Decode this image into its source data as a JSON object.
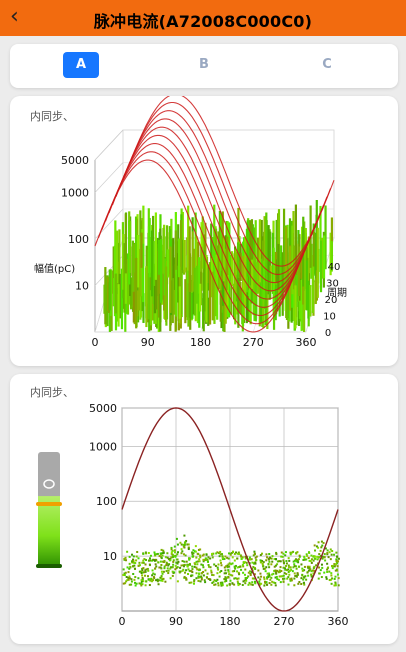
{
  "header": {
    "back_icon": "chevron-left-icon",
    "title": "脉冲电流(A72008C000C0)"
  },
  "tabs": [
    {
      "label": "A",
      "active": true
    },
    {
      "label": "B",
      "active": false
    },
    {
      "label": "C",
      "active": false
    }
  ],
  "card1": {
    "label": "内同步、"
  },
  "card2": {
    "label": "内同步、"
  },
  "colors": {
    "accent": "#f26b0f",
    "tab_active": "#1677ff",
    "sine": "#8b2323",
    "sine_3d": "#cc1a1a",
    "pulse_green": "#5fd400"
  },
  "chart_data": [
    {
      "type": "scatter",
      "view": "3d",
      "title": "",
      "x_label": "",
      "y_label": "幅值(pC)",
      "z_label": "周期",
      "x_ticks": [
        "0",
        "90",
        "180",
        "270",
        "360"
      ],
      "y_ticks": [
        "10",
        "100",
        "1000",
        "5000"
      ],
      "z_ticks": [
        "0",
        "10",
        "20",
        "30",
        "40"
      ],
      "y_scale": "log",
      "xlim": [
        0,
        360
      ],
      "ylim": [
        1,
        5000
      ]
    },
    {
      "type": "scatter",
      "title": "",
      "x_label": "",
      "y_label": "",
      "x_ticks": [
        "0",
        "90",
        "180",
        "270",
        "360"
      ],
      "y_ticks": [
        "10",
        "100",
        "1000",
        "5000"
      ],
      "y_scale": "log",
      "xlim": [
        0,
        360
      ],
      "ylim": [
        1,
        5000
      ],
      "series": [
        {
          "type": "line",
          "points": [
            [
              0,
              75
            ],
            [
              45,
              720
            ],
            [
              90,
              5000
            ],
            [
              135,
              720
            ],
            [
              180,
              75
            ],
            [
              225,
              7.8
            ],
            [
              270,
              1.1
            ],
            [
              315,
              7.8
            ],
            [
              360,
              75
            ]
          ]
        },
        {
          "type": "scatter",
          "band": [
            3,
            20
          ]
        }
      ],
      "color_bar": {
        "level": 0.62
      }
    }
  ]
}
